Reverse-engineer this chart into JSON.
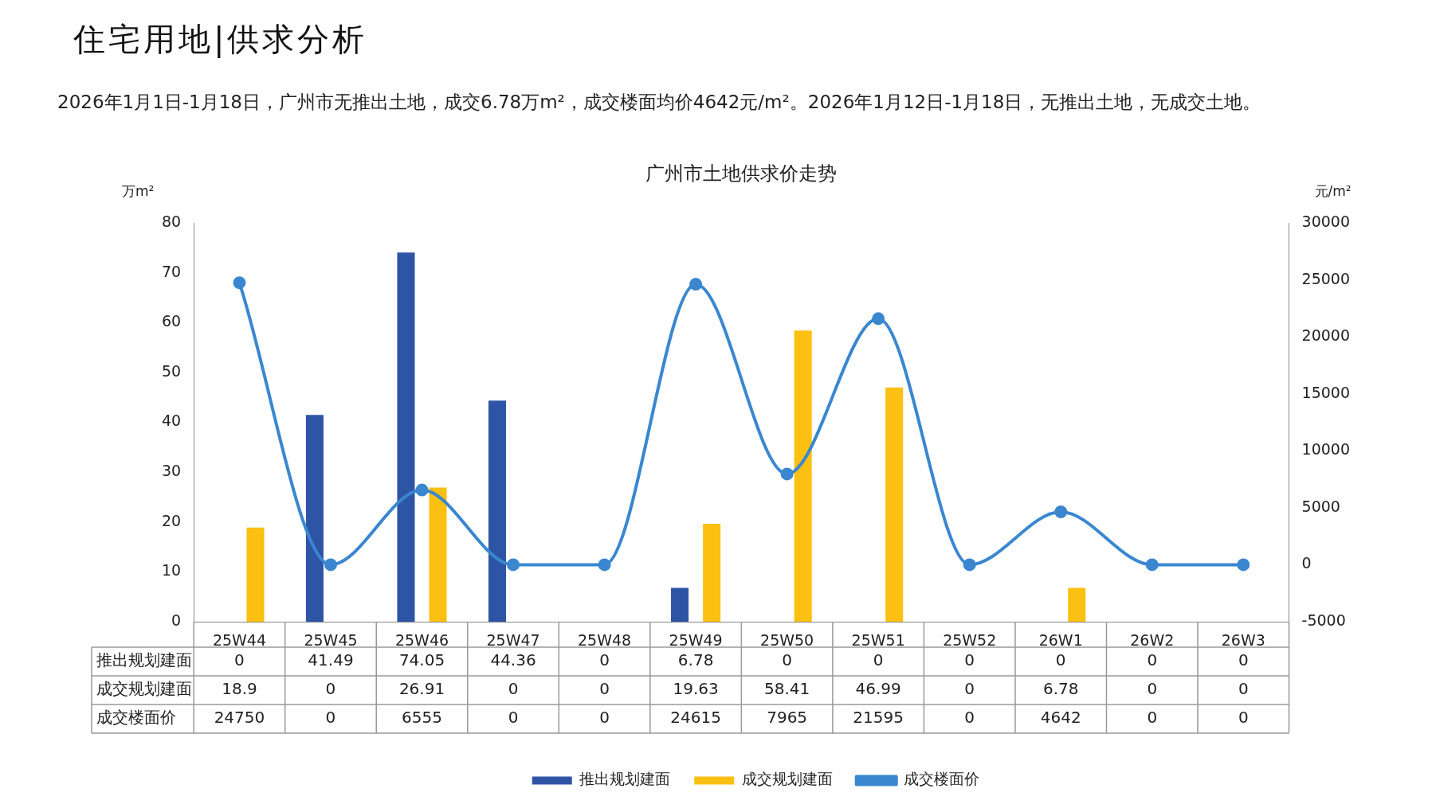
{
  "chart_data": {
    "type": "bar",
    "title": "广州市土地供求价走势",
    "annotations": [
      "住宅用地|供求分析",
      "2026年1月1日-1月18日，广州市无推出土地，成交6.78万m²，成交楼面均价4642元/m²。2026年1月12日-1月18日，无推出土地，无成交土地。"
    ],
    "categories": [
      "25W44",
      "25W45",
      "25W46",
      "25W47",
      "25W48",
      "25W49",
      "25W50",
      "25W51",
      "25W52",
      "26W1",
      "26W2",
      "26W3"
    ],
    "series": [
      {
        "name": "推出规划建面",
        "color": "#2e54a6",
        "values": [
          0,
          41.49,
          74.05,
          44.36,
          0,
          6.78,
          0,
          0,
          0,
          0,
          0,
          0
        ]
      },
      {
        "name": "成交规划建面",
        "color": "#fbc011",
        "values": [
          18.9,
          0,
          26.91,
          0,
          0,
          19.63,
          58.41,
          46.99,
          0,
          6.78,
          0,
          0
        ]
      },
      {
        "name": "成交楼面价",
        "type": "line",
        "axis": "y2",
        "color": "#3a87d0",
        "values": [
          24750,
          0,
          6555,
          0,
          0,
          24615,
          7965,
          21595,
          0,
          4642,
          0,
          0
        ]
      }
    ],
    "ylabel": "万m²",
    "y2label": "元/m²",
    "ylim": [
      0,
      80
    ],
    "yticks": [
      0,
      10,
      20,
      30,
      40,
      50,
      60,
      70,
      80
    ],
    "y2lim": [
      -5000,
      30000
    ],
    "y2ticks": [
      -5000,
      0,
      5000,
      10000,
      15000,
      20000,
      25000,
      30000
    ],
    "marker": "circle",
    "data_labels": true,
    "legend": "bottom"
  }
}
